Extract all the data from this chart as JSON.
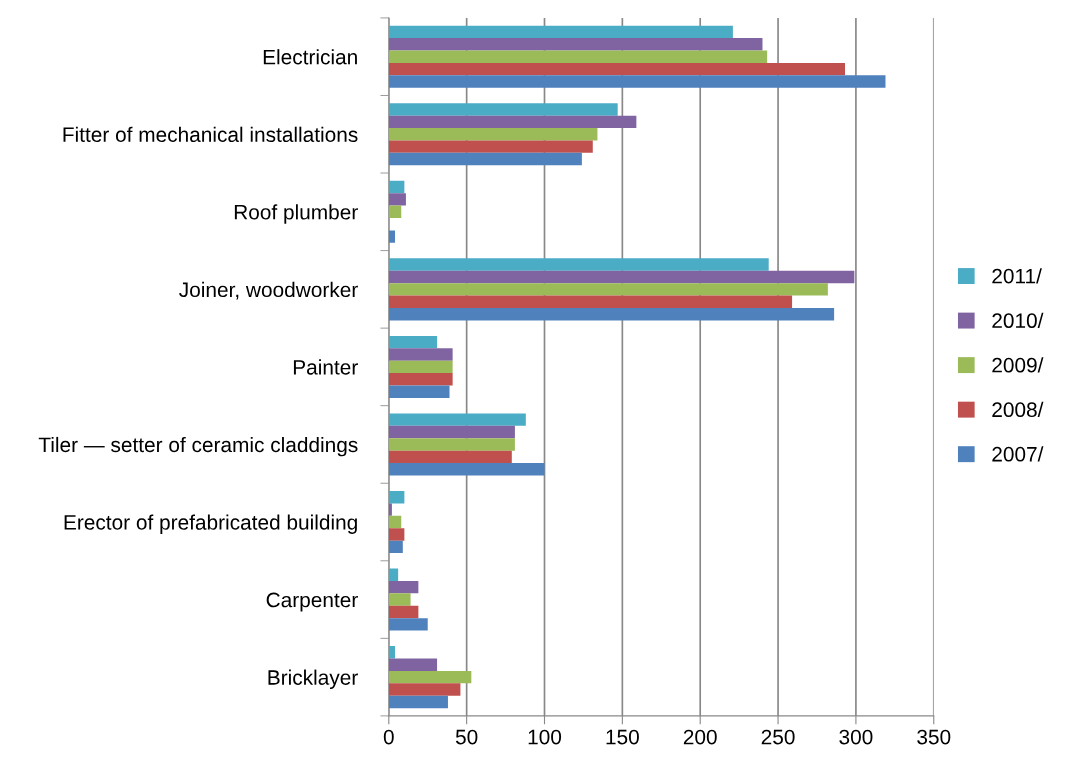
{
  "chart_data": {
    "type": "bar",
    "orientation": "horizontal",
    "categories": [
      "Electrician",
      "Fitter of mechanical installations",
      "Roof plumber",
      "Joiner, woodworker",
      "Painter",
      "Tiler — setter of ceramic claddings",
      "Erector of prefabricated building",
      "Carpenter",
      "Bricklayer"
    ],
    "series": [
      {
        "name": "2011/",
        "color": "#4bacc6",
        "values": [
          221,
          147,
          10,
          244,
          31,
          88,
          10,
          6,
          4
        ]
      },
      {
        "name": "2010/",
        "color": "#8064a2",
        "values": [
          240,
          159,
          11,
          299,
          41,
          81,
          2,
          19,
          31
        ]
      },
      {
        "name": "2009/",
        "color": "#9bbb59",
        "values": [
          243,
          134,
          8,
          282,
          41,
          81,
          8,
          14,
          53
        ]
      },
      {
        "name": "2008/",
        "color": "#c0504d",
        "values": [
          293,
          131,
          0,
          259,
          41,
          79,
          10,
          19,
          46
        ]
      },
      {
        "name": "2007/",
        "color": "#4f81bd",
        "values": [
          319,
          124,
          4,
          286,
          39,
          100,
          9,
          25,
          38
        ]
      }
    ],
    "xlim": [
      0,
      350
    ],
    "xticks": [
      0,
      50,
      100,
      150,
      200,
      250,
      300,
      350
    ],
    "grid": "x",
    "legend": "right"
  }
}
